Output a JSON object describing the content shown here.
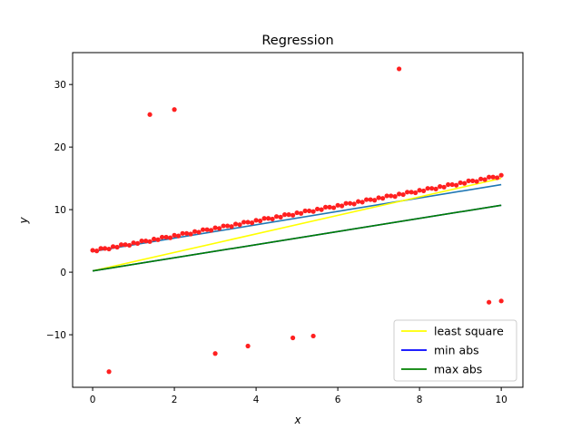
{
  "chart_data": {
    "type": "scatter",
    "title": "Regression",
    "xlabel": "x",
    "ylabel": "y",
    "xlim": [
      -0.49,
      10.53
    ],
    "ylim": [
      -18.4,
      35.1
    ],
    "xticks": [
      0,
      2,
      4,
      6,
      8,
      10
    ],
    "yticks": [
      -10,
      0,
      10,
      20,
      30
    ],
    "xtick_labels": [
      "0",
      "2",
      "4",
      "6",
      "8",
      "10"
    ],
    "ytick_labels": [
      "−10",
      "0",
      "10",
      "20",
      "30"
    ],
    "grid": false,
    "legend_placement": "lower-right",
    "points": {
      "color": "#ff2020",
      "x_start": 0,
      "x_step": 0.1,
      "y": [
        3.5,
        3.4,
        3.8,
        3.8,
        3.7,
        4.1,
        4.0,
        4.4,
        4.4,
        4.3,
        4.7,
        4.6,
        5.0,
        5.0,
        4.9,
        5.3,
        5.2,
        5.6,
        5.6,
        5.5,
        5.9,
        5.8,
        6.2,
        6.2,
        6.1,
        6.5,
        6.4,
        6.8,
        6.8,
        6.7,
        7.1,
        7.0,
        7.4,
        7.4,
        7.3,
        7.7,
        7.6,
        8.0,
        8.0,
        7.9,
        8.3,
        8.2,
        8.6,
        8.6,
        8.5,
        8.9,
        8.8,
        9.2,
        9.2,
        9.1,
        9.5,
        9.4,
        9.8,
        9.8,
        9.7,
        10.1,
        10.0,
        10.4,
        10.4,
        10.3,
        10.7,
        10.6,
        11.0,
        11.0,
        10.9,
        11.3,
        11.2,
        11.6,
        11.6,
        11.5,
        11.9,
        11.8,
        12.2,
        12.2,
        12.1,
        12.5,
        12.4,
        12.8,
        12.8,
        12.7,
        13.1,
        13.0,
        13.4,
        13.4,
        13.3,
        13.7,
        13.6,
        14.0,
        14.0,
        13.9,
        14.3,
        14.2,
        14.6,
        14.6,
        14.5,
        14.9,
        14.8,
        15.2,
        15.2,
        15.1,
        15.5
      ],
      "outliers": [
        [
          0.4,
          -15.9
        ],
        [
          1.4,
          25.2
        ],
        [
          2.0,
          26.0
        ],
        [
          3.0,
          -13.0
        ],
        [
          3.8,
          -11.8
        ],
        [
          4.9,
          -10.5
        ],
        [
          5.4,
          -10.2
        ],
        [
          7.5,
          32.5
        ],
        [
          9.7,
          -4.8
        ],
        [
          10.0,
          -4.6
        ]
      ]
    },
    "lines": [
      {
        "name": "true line",
        "color": "#1f77b4",
        "x": [
          0,
          10
        ],
        "y": [
          3.3,
          14.0
        ],
        "in_legend": false
      },
      {
        "name": "least square",
        "color": "#ffff00",
        "x": [
          0,
          10
        ],
        "y": [
          0.2,
          15.0
        ],
        "in_legend": true
      },
      {
        "name": "min abs",
        "color": "#0000ff",
        "x": [
          0,
          10
        ],
        "y": [
          0.2,
          10.7
        ],
        "in_legend": true
      },
      {
        "name": "max abs",
        "color": "#008000",
        "x": [
          0,
          10
        ],
        "y": [
          0.2,
          10.7
        ],
        "in_legend": true
      }
    ],
    "legend": [
      "least square",
      "min abs",
      "max abs"
    ]
  }
}
